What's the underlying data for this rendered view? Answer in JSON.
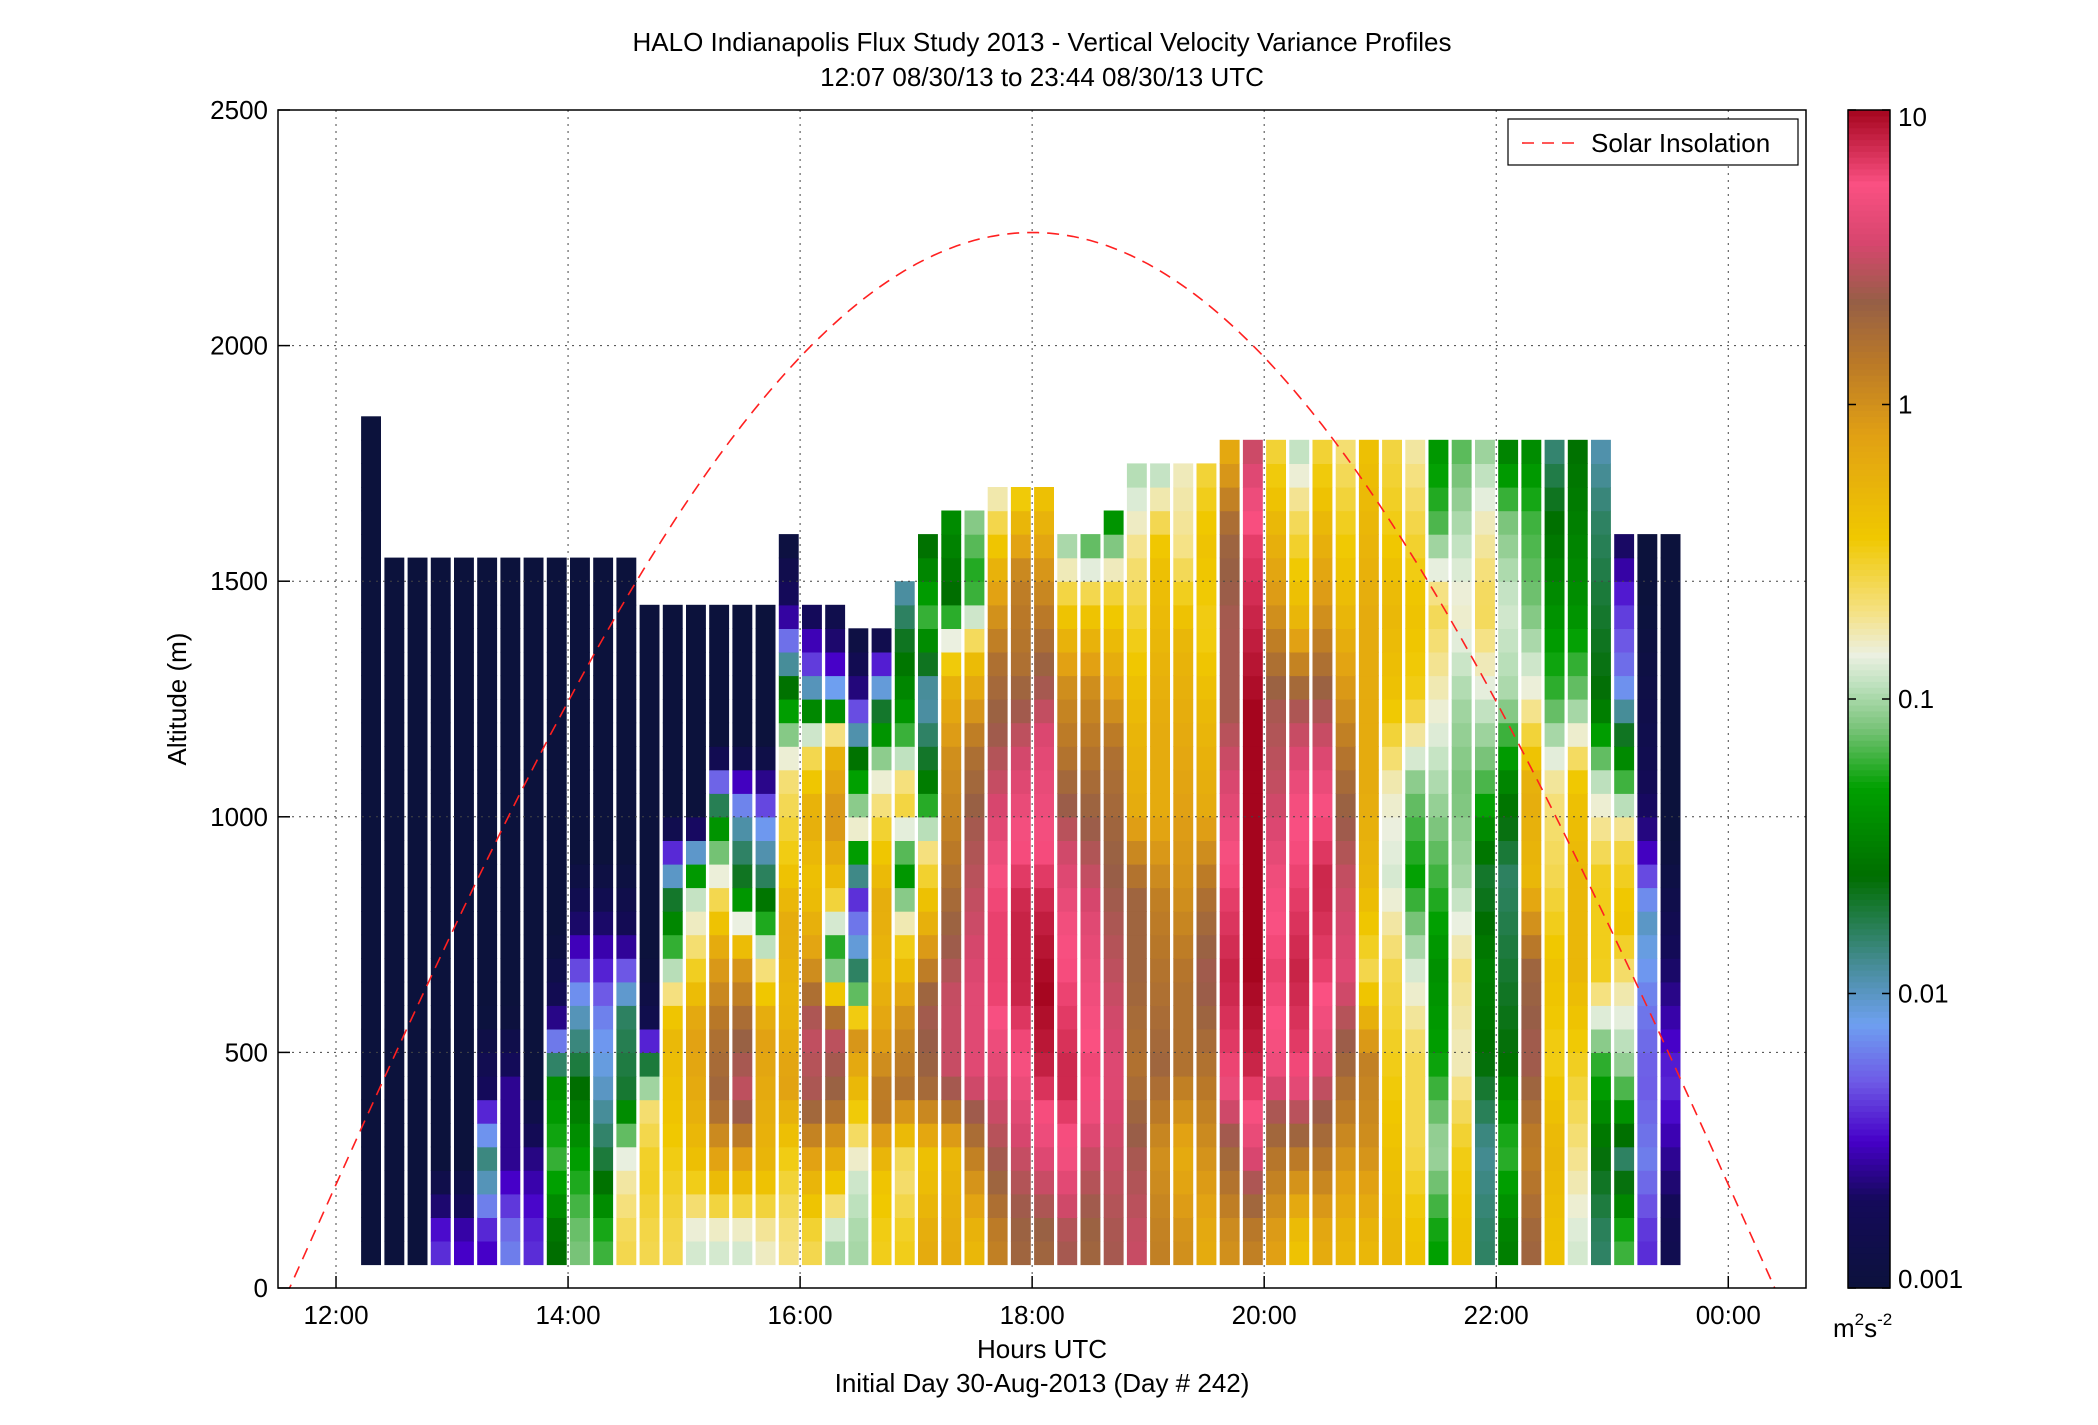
{
  "chart_data": {
    "type": "heatmap",
    "title": "HALO Indianapolis Flux Study 2013 - Vertical Velocity Variance Profiles",
    "subtitle": "12:07 08/30/13 to 23:44 08/30/13  UTC",
    "xlabel": "Hours UTC",
    "xlabel2": "Initial Day 30-Aug-2013 (Day # 242)",
    "ylabel": "Altitude (m)",
    "x_ticks": [
      {
        "hour": 12,
        "label": "12:00"
      },
      {
        "hour": 14,
        "label": "14:00"
      },
      {
        "hour": 16,
        "label": "16:00"
      },
      {
        "hour": 18,
        "label": "18:00"
      },
      {
        "hour": 20,
        "label": "20:00"
      },
      {
        "hour": 22,
        "label": "22:00"
      },
      {
        "hour": 24,
        "label": "00:00"
      }
    ],
    "y_ticks": [
      0,
      500,
      1000,
      1500,
      2000,
      2500
    ],
    "xlim": [
      11.5,
      24.67
    ],
    "ylim": [
      0,
      2500
    ],
    "grid": true,
    "colorbar": {
      "scale": "log",
      "range": [
        0.001,
        10
      ],
      "ticks": [
        "0.001",
        "0.01",
        "0.1",
        "1",
        "10"
      ],
      "unit_base": "m",
      "unit_exp1": "2",
      "unit_s": "s",
      "unit_exp2": "-2"
    },
    "legend": {
      "position": "top-right",
      "entries": [
        "Solar Insolation"
      ]
    },
    "solar_insolation": {
      "peak_hour": 18.0,
      "half_width_hours": 6.4,
      "peak_altitude": 2240,
      "color": "#ff2020"
    },
    "profiles_note_step_hours": 0.1667,
    "profiles": [
      {
        "t": 12.3,
        "top": 1820,
        "lvl": [
          -3.0,
          -3.0,
          -3.0,
          -3.0,
          -3.0,
          -3.0,
          -3.0,
          -3.0,
          -3.0,
          -3.0
        ]
      },
      {
        "t": 12.5,
        "top": 1540,
        "lvl": [
          -3.0,
          -3.0,
          -3.0,
          -3.0,
          -3.0,
          -3.0,
          -3.0,
          -3.0,
          -3.0,
          -3.0
        ]
      },
      {
        "t": 12.7,
        "top": 1540,
        "lvl": [
          -3.0,
          -3.0,
          -3.0,
          -3.0,
          -3.0,
          -3.0,
          -3.0,
          -3.0,
          -3.0,
          -3.0
        ]
      },
      {
        "t": 12.9,
        "top": 1520,
        "lvl": [
          -2.4,
          -3.0,
          -3.0,
          -3.0,
          -3.0,
          -3.0,
          -3.0,
          -3.0,
          -3.0,
          -3.0
        ]
      },
      {
        "t": 13.1,
        "top": 1520,
        "lvl": [
          -2.5,
          -3.0,
          -3.0,
          -3.0,
          -3.0,
          -3.0,
          -3.0,
          -3.0,
          -3.0,
          -3.0
        ]
      },
      {
        "t": 13.3,
        "top": 1520,
        "lvl": [
          -2.5,
          -1.8,
          -2.7,
          -3.0,
          -3.0,
          -3.0,
          -3.0,
          -3.0,
          -3.0,
          -3.0
        ]
      },
      {
        "t": 13.5,
        "top": 1520,
        "lvl": [
          -2.2,
          -2.6,
          -2.6,
          -3.0,
          -3.0,
          -3.0,
          -3.0,
          -3.0,
          -3.0,
          -3.0
        ]
      },
      {
        "t": 13.7,
        "top": 1520,
        "lvl": [
          -2.4,
          -2.6,
          -3.0,
          -3.0,
          -3.0,
          -3.0,
          -3.0,
          -3.0,
          -3.0,
          -3.0
        ]
      },
      {
        "t": 13.9,
        "top": 1520,
        "lvl": [
          -1.6,
          -1.2,
          -1.4,
          -2.7,
          -3.0,
          -3.0,
          -3.0,
          -3.0,
          -3.0,
          -3.0
        ]
      },
      {
        "t": 14.1,
        "top": 1520,
        "lvl": [
          -1.1,
          -1.3,
          -1.6,
          -2.0,
          -2.6,
          -3.0,
          -3.0,
          -3.0,
          -3.0,
          -3.0
        ]
      },
      {
        "t": 14.3,
        "top": 1520,
        "lvl": [
          -1.2,
          -1.7,
          -2.0,
          -2.2,
          -2.6,
          -3.0,
          -3.0,
          -3.0,
          -3.0,
          -3.0
        ]
      },
      {
        "t": 14.5,
        "top": 1520,
        "lvl": [
          -0.6,
          -0.8,
          -1.7,
          -1.8,
          -2.7,
          -3.0,
          -3.0,
          -3.0,
          -3.0,
          -3.0
        ]
      },
      {
        "t": 14.7,
        "top": 1420,
        "lvl": [
          -0.6,
          -0.5,
          -0.7,
          -2.8,
          -3.0,
          -3.0,
          -3.0,
          -3.0,
          -3.0,
          -3.0
        ]
      },
      {
        "t": 14.9,
        "top": 1420,
        "lvl": [
          -0.6,
          -0.5,
          -0.4,
          -0.3,
          -1.1,
          -1.8,
          -3.0,
          -3.0,
          -3.0,
          -3.0
        ]
      },
      {
        "t": 15.1,
        "top": 1420,
        "lvl": [
          -0.9,
          -0.4,
          -0.2,
          -0.1,
          -0.6,
          -1.0,
          -3.0,
          -3.0,
          -3.0,
          -3.0
        ]
      },
      {
        "t": 15.3,
        "top": 1420,
        "lvl": [
          -0.9,
          -0.2,
          0.3,
          0.2,
          -0.1,
          -0.7,
          -1.5,
          -3.0,
          -3.0,
          -3.0
        ]
      },
      {
        "t": 15.5,
        "top": 1420,
        "lvl": [
          -0.9,
          -0.2,
          0.5,
          0.3,
          -0.1,
          -1.6,
          -2.0,
          -3.0,
          -3.0,
          -3.0
        ]
      },
      {
        "t": 15.7,
        "top": 1420,
        "lvl": [
          -0.8,
          -0.3,
          -0.2,
          -0.1,
          -0.8,
          -1.7,
          -2.2,
          -3.0,
          -3.0,
          -3.0
        ]
      },
      {
        "t": 15.9,
        "top": 1570,
        "lvl": [
          -0.7,
          -0.5,
          -0.1,
          -0.3,
          -0.2,
          -0.5,
          -0.7,
          -1.5,
          -2.6,
          -3.0
        ]
      },
      {
        "t": 16.1,
        "top": 1430,
        "lvl": [
          -0.6,
          -0.2,
          0.4,
          0.5,
          -0.1,
          -0.4,
          -0.2,
          -0.7,
          -2.3,
          -2.8
        ]
      },
      {
        "t": 16.3,
        "top": 1420,
        "lvl": [
          -1.0,
          -0.3,
          0.3,
          0.5,
          -1.4,
          -0.4,
          0.0,
          -0.3,
          -2.4,
          -2.9
        ]
      },
      {
        "t": 16.5,
        "top": 1380,
        "lvl": [
          -1.0,
          -0.9,
          -0.4,
          0.0,
          -1.9,
          -2.4,
          -0.8,
          -1.5,
          -2.6,
          -3.0
        ]
      },
      {
        "t": 16.7,
        "top": 1360,
        "lvl": [
          -0.5,
          -0.4,
          0.2,
          -0.1,
          -0.3,
          -0.2,
          -0.5,
          -0.9,
          -1.8,
          -2.9
        ]
      },
      {
        "t": 16.9,
        "top": 1480,
        "lvl": [
          -0.5,
          -0.7,
          0.2,
          0.0,
          -0.5,
          -1.4,
          -0.5,
          -1.3,
          -1.6,
          -2.0
        ]
      },
      {
        "t": 17.1,
        "top": 1560,
        "lvl": [
          -0.2,
          -0.4,
          0.3,
          0.4,
          -0.2,
          -0.7,
          -1.6,
          -2.0,
          -1.2,
          -1.6
        ]
      },
      {
        "t": 17.3,
        "top": 1620,
        "lvl": [
          -0.2,
          -0.3,
          0.5,
          0.5,
          0.3,
          0.1,
          0.0,
          -0.3,
          -1.6,
          -1.4
        ]
      },
      {
        "t": 17.5,
        "top": 1640,
        "lvl": [
          -0.3,
          0.1,
          0.6,
          0.6,
          0.5,
          0.4,
          0.2,
          -0.3,
          -1.3,
          -1.0
        ]
      },
      {
        "t": 17.7,
        "top": 1660,
        "lvl": [
          0.1,
          0.4,
          0.6,
          0.8,
          0.8,
          0.6,
          0.4,
          0.2,
          -0.2,
          -0.8
        ]
      },
      {
        "t": 17.9,
        "top": 1660,
        "lvl": [
          0.3,
          0.5,
          0.7,
          0.9,
          0.9,
          0.7,
          0.5,
          0.2,
          0.1,
          -0.5
        ]
      },
      {
        "t": 18.1,
        "top": 1660,
        "lvl": [
          0.3,
          0.6,
          0.9,
          1.0,
          0.9,
          0.7,
          0.6,
          0.3,
          0.0,
          -0.4
        ]
      },
      {
        "t": 18.3,
        "top": 1600,
        "lvl": [
          0.4,
          0.7,
          0.9,
          0.8,
          0.7,
          0.5,
          0.2,
          0.0,
          -0.5,
          -1.2
        ]
      },
      {
        "t": 18.5,
        "top": 1600,
        "lvl": [
          0.3,
          0.5,
          0.8,
          0.7,
          0.6,
          0.4,
          0.2,
          0.0,
          -0.5,
          -1.4
        ]
      },
      {
        "t": 18.7,
        "top": 1640,
        "lvl": [
          0.4,
          0.5,
          0.6,
          0.5,
          0.4,
          0.3,
          0.2,
          -0.2,
          -0.6,
          -1.6
        ]
      },
      {
        "t": 18.9,
        "top": 1720,
        "lvl": [
          0.5,
          0.4,
          0.2,
          0.3,
          0.3,
          -0.2,
          -0.3,
          -0.5,
          -0.7,
          -1.0
        ]
      },
      {
        "t": 19.1,
        "top": 1720,
        "lvl": [
          0.1,
          0.0,
          0.3,
          0.2,
          0.1,
          -0.2,
          -0.2,
          -0.3,
          -0.4,
          -1.0
        ]
      },
      {
        "t": 19.3,
        "top": 1720,
        "lvl": [
          0.0,
          -0.2,
          0.2,
          0.2,
          0.0,
          -0.1,
          -0.2,
          -0.3,
          -0.7,
          -0.8
        ]
      },
      {
        "t": 19.5,
        "top": 1740,
        "lvl": [
          -0.2,
          0.0,
          0.2,
          0.4,
          0.2,
          -0.2,
          -0.3,
          -0.5,
          -0.4,
          -0.6
        ]
      },
      {
        "t": 19.7,
        "top": 1760,
        "lvl": [
          0.0,
          0.3,
          0.8,
          0.9,
          0.8,
          0.6,
          0.4,
          0.4,
          0.3,
          -0.2
        ]
      },
      {
        "t": 19.9,
        "top": 1760,
        "lvl": [
          0.1,
          0.6,
          0.9,
          1.0,
          1.0,
          1.0,
          1.0,
          0.9,
          0.8,
          0.5
        ]
      },
      {
        "t": 20.1,
        "top": 1780,
        "lvl": [
          -0.1,
          0.2,
          0.7,
          0.8,
          0.7,
          0.5,
          0.4,
          0.0,
          -0.3,
          -0.6
        ]
      },
      {
        "t": 20.3,
        "top": 1780,
        "lvl": [
          -0.4,
          0.2,
          0.8,
          0.9,
          0.8,
          0.7,
          0.4,
          -0.3,
          -0.6,
          -1.0
        ]
      },
      {
        "t": 20.5,
        "top": 1780,
        "lvl": [
          -0.2,
          0.2,
          0.6,
          0.8,
          0.9,
          0.7,
          0.4,
          0.0,
          -0.3,
          -0.6
        ]
      },
      {
        "t": 20.7,
        "top": 1780,
        "lvl": [
          -0.3,
          0.0,
          0.3,
          0.6,
          0.5,
          0.3,
          0.0,
          -0.3,
          -0.5,
          -0.7
        ]
      },
      {
        "t": 20.9,
        "top": 1780,
        "lvl": [
          -0.3,
          0.0,
          0.1,
          -0.6,
          -0.3,
          -0.2,
          -0.2,
          -0.2,
          -0.3,
          -0.4
        ]
      },
      {
        "t": 21.1,
        "top": 1800,
        "lvl": [
          -0.3,
          -0.4,
          -0.5,
          -0.6,
          -0.9,
          -0.8,
          -0.4,
          -0.3,
          -0.5,
          -0.6
        ]
      },
      {
        "t": 21.3,
        "top": 1800,
        "lvl": [
          -0.4,
          -0.6,
          -0.6,
          -0.9,
          -1.3,
          -1.1,
          -0.5,
          -0.4,
          -0.6,
          -0.8
        ]
      },
      {
        "t": 21.5,
        "top": 1800,
        "lvl": [
          -1.3,
          -1.0,
          -1.3,
          -1.4,
          -1.2,
          -1.0,
          -0.8,
          -0.6,
          -1.2,
          -1.4
        ]
      },
      {
        "t": 21.7,
        "top": 1800,
        "lvl": [
          -0.4,
          -0.5,
          -0.8,
          -0.7,
          -1.0,
          -1.1,
          -1.0,
          -0.8,
          -1.0,
          -1.2
        ]
      },
      {
        "t": 21.9,
        "top": 1800,
        "lvl": [
          -1.8,
          -1.9,
          -1.6,
          -1.5,
          -1.7,
          -1.2,
          -0.9,
          -0.6,
          -0.8,
          -1.1
        ]
      },
      {
        "t": 22.1,
        "top": 1800,
        "lvl": [
          -1.5,
          -1.2,
          -1.6,
          -1.7,
          -1.8,
          -1.5,
          -1.0,
          -0.9,
          -1.1,
          -1.6
        ]
      },
      {
        "t": 22.3,
        "top": 1800,
        "lvl": [
          0.3,
          0.1,
          0.4,
          0.3,
          -0.3,
          -0.2,
          -0.8,
          -1.1,
          -1.2,
          -1.5
        ]
      },
      {
        "t": 22.5,
        "top": 1800,
        "lvl": [
          -0.4,
          -0.3,
          -0.5,
          -0.4,
          -0.6,
          -0.7,
          -1.2,
          -1.4,
          -1.6,
          -1.9
        ]
      },
      {
        "t": 22.7,
        "top": 1800,
        "lvl": [
          -0.9,
          -0.7,
          -0.5,
          -0.3,
          -0.3,
          -0.4,
          -1.1,
          -1.4,
          -1.5,
          -1.6
        ]
      },
      {
        "t": 22.9,
        "top": 1800,
        "lvl": [
          -1.8,
          -1.6,
          -1.2,
          -0.5,
          -0.5,
          -0.9,
          -1.6,
          -1.7,
          -1.8,
          -2.0
        ]
      },
      {
        "t": 23.1,
        "top": 1600,
        "lvl": [
          -1.2,
          -1.8,
          -1.1,
          -0.8,
          -0.4,
          -0.6,
          -1.4,
          -2.2,
          -2.4,
          -2.8
        ]
      },
      {
        "t": 23.3,
        "top": 1600,
        "lvl": [
          -2.4,
          -2.2,
          -2.3,
          -2.2,
          -2.0,
          -2.6,
          -2.8,
          -2.9,
          -3.0,
          -3.0
        ]
      },
      {
        "t": 23.5,
        "top": 1600,
        "lvl": [
          -2.8,
          -2.6,
          -2.4,
          -2.6,
          -2.8,
          -3.0,
          -3.0,
          -3.0,
          -3.0,
          -3.0
        ]
      }
    ]
  }
}
